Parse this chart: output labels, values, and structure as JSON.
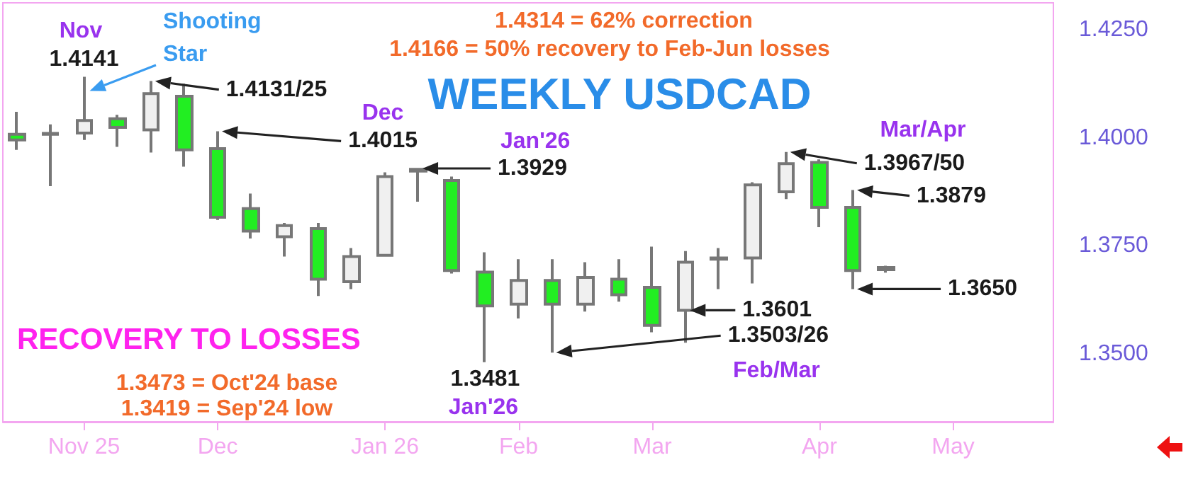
{
  "chart_data": {
    "type": "candlestick",
    "title": "WEEKLY USDCAD",
    "x": [
      "2025-10-20",
      "2025-10-27",
      "2025-11-03",
      "2025-11-10",
      "2025-11-17",
      "2025-11-24",
      "2025-12-01",
      "2025-12-08",
      "2025-12-15",
      "2025-12-22",
      "2025-12-29",
      "2026-01-05",
      "2026-01-12",
      "2026-01-19",
      "2026-01-26",
      "2026-02-02",
      "2026-02-09",
      "2026-02-16",
      "2026-02-23",
      "2026-03-02",
      "2026-03-09",
      "2026-03-16",
      "2026-03-23",
      "2026-03-30",
      "2026-04-06",
      "2026-04-13",
      "2026-04-20"
    ],
    "ohlc": [
      [
        1.4008,
        1.406,
        1.3972,
        1.3995
      ],
      [
        1.4008,
        1.4031,
        1.3888,
        1.401
      ],
      [
        1.4011,
        1.4141,
        1.3995,
        1.404
      ],
      [
        1.4044,
        1.4053,
        1.3979,
        1.4024
      ],
      [
        1.4018,
        1.4131,
        1.3966,
        1.4102
      ],
      [
        1.4096,
        1.4125,
        1.3933,
        1.3972
      ],
      [
        1.3975,
        1.4015,
        1.381,
        1.3816
      ],
      [
        1.3836,
        1.3871,
        1.3767,
        1.3784
      ],
      [
        1.3771,
        1.3803,
        1.3725,
        1.3797
      ],
      [
        1.379,
        1.3803,
        1.3634,
        1.3673
      ],
      [
        1.3667,
        1.3745,
        1.365,
        1.3725
      ],
      [
        1.3728,
        1.392,
        1.3725,
        1.391
      ],
      [
        1.3927,
        1.3929,
        1.3852,
        1.3923
      ],
      [
        1.3901,
        1.391,
        1.3686,
        1.3693
      ],
      [
        1.3689,
        1.3735,
        1.3481,
        1.3611
      ],
      [
        1.3615,
        1.3719,
        1.3582,
        1.367
      ],
      [
        1.367,
        1.3719,
        1.3503,
        1.3615
      ],
      [
        1.3615,
        1.3712,
        1.3598,
        1.3677
      ],
      [
        1.3673,
        1.3719,
        1.3621,
        1.3637
      ],
      [
        1.3654,
        1.3748,
        1.355,
        1.3566
      ],
      [
        1.3601,
        1.3738,
        1.3526,
        1.3712
      ],
      [
        1.3722,
        1.3745,
        1.365,
        1.3719
      ],
      [
        1.3722,
        1.3897,
        1.3663,
        1.3891
      ],
      [
        1.3875,
        1.3967,
        1.3858,
        1.394
      ],
      [
        1.3943,
        1.395,
        1.3793,
        1.3839
      ],
      [
        1.3839,
        1.3879,
        1.365,
        1.3693
      ],
      [
        1.37,
        1.3704,
        1.3688,
        1.3695
      ]
    ],
    "colors": [
      "#22ee22",
      "#f0f0f0",
      "#f0f0f0",
      "#22ee22",
      "#f0f0f0",
      "#22ee22",
      "#22ee22",
      "#22ee22",
      "#f0f0f0",
      "#22ee22",
      "#f0f0f0",
      "#f0f0f0",
      "#22ee22",
      "#22ee22",
      "#22ee22",
      "#f0f0f0",
      "#22ee22",
      "#f0f0f0",
      "#22ee22",
      "#22ee22",
      "#f0f0f0",
      "#22ee22",
      "#f0f0f0",
      "#f0f0f0",
      "#22ee22",
      "#22ee22",
      "#22ee22"
    ],
    "xlim": [
      "2025-10-17",
      "2026-05-25"
    ],
    "xticks": [
      {
        "value": "2025-11-03",
        "label": "Nov 25"
      },
      {
        "value": "2025-12-01",
        "label": "Dec"
      },
      {
        "value": "2026-01-05",
        "label": "Jan 26"
      },
      {
        "value": "2026-02-02",
        "label": "Feb"
      },
      {
        "value": "2026-03-02",
        "label": "Mar"
      },
      {
        "value": "2026-04-06",
        "label": "Apr"
      },
      {
        "value": "2026-05-04",
        "label": "May"
      }
    ],
    "ylim": [
      1.3343,
      1.4312
    ],
    "yticks": [
      {
        "value": 1.35,
        "label": "1.3500"
      },
      {
        "value": 1.375,
        "label": "1.3750"
      },
      {
        "value": 1.4,
        "label": "1.4000"
      },
      {
        "value": 1.425,
        "label": "1.4250"
      }
    ],
    "grid": false,
    "annotations": [
      "Nov",
      "1.4141",
      "Shooting Star",
      "1.4131/25",
      "Dec",
      "1.4015",
      "1.4314 = 62% correction",
      "1.4166 = 50% recovery to Feb-Jun losses",
      "Jan'26",
      "1.3929",
      "1.3481",
      "Jan'26",
      "1.3601",
      "1.3503/26",
      "Feb/Mar",
      "Mar/Apr",
      "1.3967/50",
      "1.3879",
      "1.3650",
      "RECOVERY TO LOSSES",
      "1.3473 = Oct'24 base",
      "1.3419 = Sep'24 low"
    ]
  }
}
